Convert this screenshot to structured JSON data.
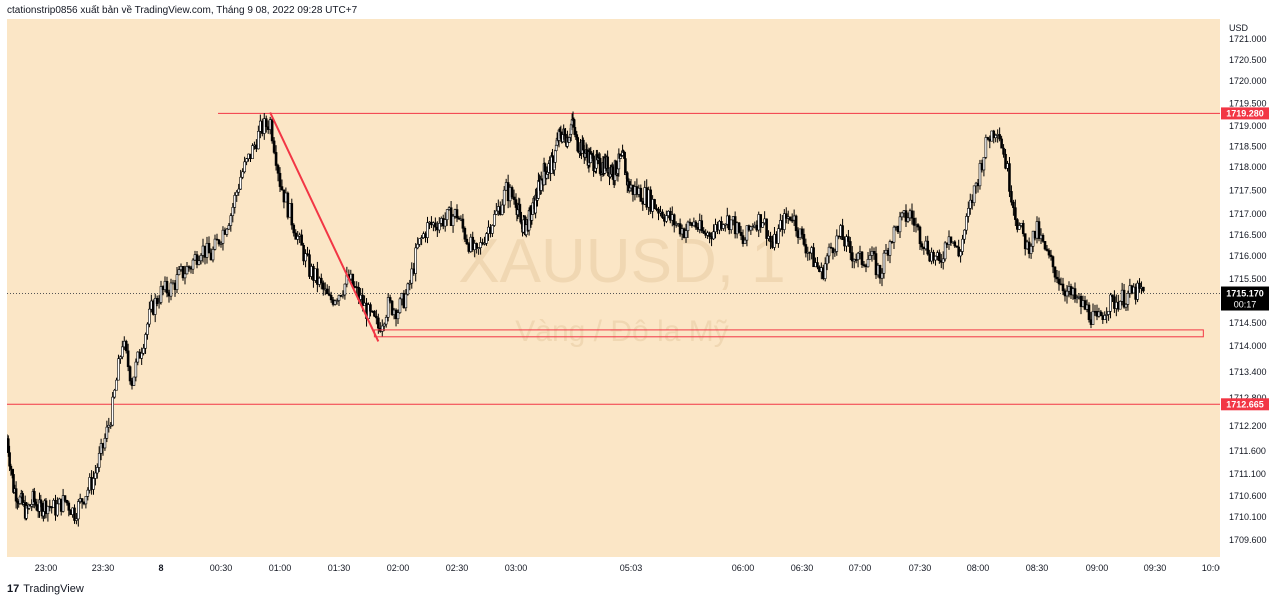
{
  "header": {
    "text": "ctationstrip0856 xuất bản về TradingView.com, Tháng 9 08, 2022 09:28 UTC+7"
  },
  "footer": {
    "brand": "TradingView",
    "logo_glyph": "17"
  },
  "watermark": {
    "symbol": "XAUUSD, 1",
    "description": "Vàng / Đô la Mỹ"
  },
  "colors": {
    "background": "#fbe6c6",
    "candle": "#000000",
    "line_red": "#f23645",
    "tag_red": "#f23645",
    "tag_black": "#000000"
  },
  "chart_data": {
    "type": "candlestick",
    "currency_label": "USD",
    "y_ticks": [
      "1721.000",
      "1720.500",
      "1720.000",
      "1719.500",
      "1719.000",
      "1718.500",
      "1718.000",
      "1717.500",
      "1717.000",
      "1716.500",
      "1716.000",
      "1715.500",
      "1714.500",
      "1714.000",
      "1713.400",
      "1712.800",
      "1712.200",
      "1711.600",
      "1711.100",
      "1710.600",
      "1710.100",
      "1709.600"
    ],
    "x_ticks": [
      "23:00",
      "23:30",
      "8",
      "00:30",
      "01:00",
      "01:30",
      "02:00",
      "02:30",
      "03:00",
      "05:03",
      "06:00",
      "06:30",
      "07:00",
      "07:30",
      "08:00",
      "08:30",
      "09:00",
      "09:30",
      "10:00"
    ],
    "horizontal_lines": [
      {
        "value": 1719.28,
        "label": "1719.280",
        "color": "#f23645"
      },
      {
        "value": 1712.665,
        "label": "1712.665",
        "color": "#f23645"
      }
    ],
    "current_price": {
      "label": "1715.170",
      "countdown": "00:17"
    },
    "trendline": {
      "from": {
        "time": "00:55",
        "price": 1719.3
      },
      "to": {
        "time": "01:50",
        "price": 1714.1
      }
    },
    "rectangle": {
      "from_time": "01:48",
      "to_time": "09:55",
      "price_high": 1714.35,
      "price_low": 1714.2
    },
    "price_path": [
      [
        "22:30",
        1711.9
      ],
      [
        "22:35",
        1710.8
      ],
      [
        "22:40",
        1710.5
      ],
      [
        "22:45",
        1710.2
      ],
      [
        "22:50",
        1710.5
      ],
      [
        "22:55",
        1710.3
      ],
      [
        "23:00",
        1710.4
      ],
      [
        "23:05",
        1710.3
      ],
      [
        "23:10",
        1710.5
      ],
      [
        "23:15",
        1710.2
      ],
      [
        "23:20",
        1710.6
      ],
      [
        "23:25",
        1711.0
      ],
      [
        "23:30",
        1711.7
      ],
      [
        "23:35",
        1712.6
      ],
      [
        "23:40",
        1714.1
      ],
      [
        "23:45",
        1713.2
      ],
      [
        "23:50",
        1714.0
      ],
      [
        "23:55",
        1714.8
      ],
      [
        "00:00",
        1715.2
      ],
      [
        "00:05",
        1715.3
      ],
      [
        "00:10",
        1715.6
      ],
      [
        "00:15",
        1715.8
      ],
      [
        "00:20",
        1716.2
      ],
      [
        "00:25",
        1716.0
      ],
      [
        "00:30",
        1716.5
      ],
      [
        "00:35",
        1717.0
      ],
      [
        "00:40",
        1717.8
      ],
      [
        "00:45",
        1718.3
      ],
      [
        "00:50",
        1718.9
      ],
      [
        "00:55",
        1719.1
      ],
      [
        "01:00",
        1717.7
      ],
      [
        "01:05",
        1717.0
      ],
      [
        "01:10",
        1716.3
      ],
      [
        "01:15",
        1715.7
      ],
      [
        "01:20",
        1715.4
      ],
      [
        "01:25",
        1715.0
      ],
      [
        "01:30",
        1715.2
      ],
      [
        "01:35",
        1715.5
      ],
      [
        "01:40",
        1715.1
      ],
      [
        "01:45",
        1714.7
      ],
      [
        "01:50",
        1714.4
      ],
      [
        "01:55",
        1714.9
      ],
      [
        "02:00",
        1714.8
      ],
      [
        "02:05",
        1715.2
      ],
      [
        "02:10",
        1716.2
      ],
      [
        "02:15",
        1716.7
      ],
      [
        "02:20",
        1716.8
      ],
      [
        "02:25",
        1716.9
      ],
      [
        "02:30",
        1717.0
      ],
      [
        "02:35",
        1716.4
      ],
      [
        "02:40",
        1716.0
      ],
      [
        "02:45",
        1716.6
      ],
      [
        "02:50",
        1717.0
      ],
      [
        "02:55",
        1717.5
      ],
      [
        "03:00",
        1717.3
      ],
      [
        "03:05",
        1716.8
      ],
      [
        "03:10",
        1716.7
      ],
      [
        "03:15",
        1716.9
      ],
      [
        "03:20",
        1717.2
      ],
      [
        "03:25",
        1717.6
      ],
      [
        "03:30",
        1717.9
      ],
      [
        "03:35",
        1718.0
      ],
      [
        "03:40",
        1718.1
      ],
      [
        "03:45",
        1718.7
      ],
      [
        "03:50",
        1718.8
      ],
      [
        "03:55",
        1718.7
      ],
      [
        "04:00",
        1719.1
      ],
      [
        "04:05",
        1718.6
      ],
      [
        "04:10",
        1718.5
      ],
      [
        "04:15",
        1718.3
      ],
      [
        "04:20",
        1718.2
      ],
      [
        "04:25",
        1718.1
      ],
      [
        "04:30",
        1718.0
      ],
      [
        "04:35",
        1718.1
      ],
      [
        "04:40",
        1718.0
      ],
      [
        "04:45",
        1717.9
      ],
      [
        "04:50",
        1718.1
      ],
      [
        "04:55",
        1718.2
      ],
      [
        "05:00",
        1717.6
      ],
      [
        "05:05",
        1717.5
      ],
      [
        "05:10",
        1717.4
      ],
      [
        "05:15",
        1717.2
      ],
      [
        "05:20",
        1717.0
      ],
      [
        "05:25",
        1716.8
      ],
      [
        "05:30",
        1716.6
      ],
      [
        "05:35",
        1716.8
      ],
      [
        "05:40",
        1716.5
      ],
      [
        "05:45",
        1716.6
      ],
      [
        "05:50",
        1716.9
      ],
      [
        "05:55",
        1716.8
      ],
      [
        "06:00",
        1716.3
      ],
      [
        "06:05",
        1716.8
      ],
      [
        "06:10",
        1716.9
      ],
      [
        "06:15",
        1716.2
      ],
      [
        "06:20",
        1716.8
      ],
      [
        "06:25",
        1717.0
      ],
      [
        "06:30",
        1716.4
      ],
      [
        "06:35",
        1716.0
      ],
      [
        "06:40",
        1715.6
      ],
      [
        "06:45",
        1716.2
      ],
      [
        "06:50",
        1716.5
      ],
      [
        "06:55",
        1716.1
      ],
      [
        "07:00",
        1715.9
      ],
      [
        "07:05",
        1716.0
      ],
      [
        "07:10",
        1715.6
      ],
      [
        "07:15",
        1716.4
      ],
      [
        "07:20",
        1716.8
      ],
      [
        "07:25",
        1717.0
      ],
      [
        "07:30",
        1716.5
      ],
      [
        "07:35",
        1716.1
      ],
      [
        "07:40",
        1715.8
      ],
      [
        "07:45",
        1716.6
      ],
      [
        "07:50",
        1716.0
      ],
      [
        "07:55",
        1717.0
      ],
      [
        "08:00",
        1717.8
      ],
      [
        "08:05",
        1718.7
      ],
      [
        "08:10",
        1719.0
      ],
      [
        "08:15",
        1717.9
      ],
      [
        "08:20",
        1716.8
      ],
      [
        "08:25",
        1716.2
      ],
      [
        "08:30",
        1716.6
      ],
      [
        "08:35",
        1716.0
      ],
      [
        "08:40",
        1715.6
      ],
      [
        "08:45",
        1715.2
      ],
      [
        "08:50",
        1715.0
      ],
      [
        "08:55",
        1714.8
      ],
      [
        "09:00",
        1714.5
      ],
      [
        "09:05",
        1714.9
      ],
      [
        "09:10",
        1715.0
      ],
      [
        "09:15",
        1715.1
      ],
      [
        "09:20",
        1715.2
      ],
      [
        "09:25",
        1715.17
      ]
    ]
  }
}
